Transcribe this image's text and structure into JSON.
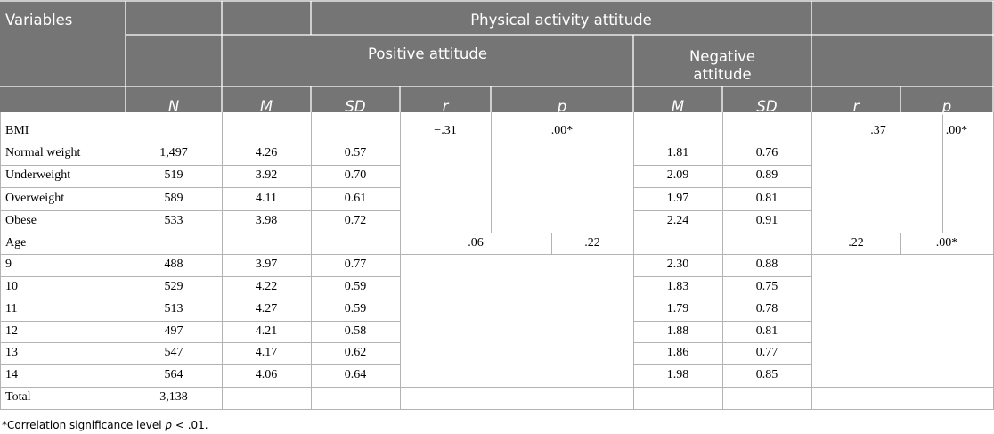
{
  "header": {
    "variables": "Variables",
    "physical_activity_attitude": "Physical activity attitude",
    "positive_attitude": "Positive attitude",
    "negative_attitude_line1": "Negative",
    "negative_attitude_line2": "attitude",
    "col_N": "N",
    "col_M": "M",
    "col_SD": "SD",
    "col_r": "r",
    "col_p": "p",
    "col_M2": "M",
    "col_SD2": "SD",
    "col_r2": "r",
    "col_p2": "p"
  },
  "rows": [
    {
      "label": "BMI",
      "n": "",
      "m": "",
      "sd": "",
      "m2": "",
      "sd2": ""
    },
    {
      "label": "Normal weight",
      "n": "1,497",
      "m": "4.26",
      "sd": "0.57",
      "m2": "1.81",
      "sd2": "0.76"
    },
    {
      "label": "Underweight",
      "n": "519",
      "m": "3.92",
      "sd": "0.70",
      "m2": "2.09",
      "sd2": "0.89"
    },
    {
      "label": "Overweight",
      "n": "589",
      "m": "4.11",
      "sd": "0.61",
      "m2": "1.97",
      "sd2": "0.81"
    },
    {
      "label": "Obese",
      "n": "533",
      "m": "3.98",
      "sd": "0.72",
      "m2": "2.24",
      "sd2": "0.91"
    },
    {
      "label": "Age",
      "n": "",
      "m": "",
      "sd": "",
      "m2": "",
      "sd2": ""
    },
    {
      "label": "9",
      "n": "488",
      "m": "3.97",
      "sd": "0.77",
      "m2": "2.30",
      "sd2": "0.88"
    },
    {
      "label": "10",
      "n": "529",
      "m": "4.22",
      "sd": "0.59",
      "m2": "1.83",
      "sd2": "0.75"
    },
    {
      "label": "11",
      "n": "513",
      "m": "4.27",
      "sd": "0.59",
      "m2": "1.79",
      "sd2": "0.78"
    },
    {
      "label": "12",
      "n": "497",
      "m": "4.21",
      "sd": "0.58",
      "m2": "1.88",
      "sd2": "0.81"
    },
    {
      "label": "13",
      "n": "547",
      "m": "4.17",
      "sd": "0.62",
      "m2": "1.86",
      "sd2": "0.77"
    },
    {
      "label": "14",
      "n": "564",
      "m": "4.06",
      "sd": "0.64",
      "m2": "1.98",
      "sd2": "0.85"
    },
    {
      "label": "Total",
      "n": "3,138",
      "m": "",
      "sd": "",
      "m2": "",
      "sd2": ""
    }
  ],
  "correlations": {
    "bmi_pos_r": "−.31",
    "bmi_pos_p": ".00*",
    "bmi_neg_r": ".37",
    "bmi_neg_p": ".00*",
    "age_pos_r": ".06",
    "age_pos_p": ".22",
    "age_neg_r": ".22",
    "age_neg_p": ".00*"
  },
  "footnote": {
    "prefix": "*Correlation significance level ",
    "p": "p",
    "suffix": " < .01."
  },
  "colors": {
    "header_bg": "#757575",
    "border": "#b3b3b3",
    "header_divider": "#ffffff"
  }
}
